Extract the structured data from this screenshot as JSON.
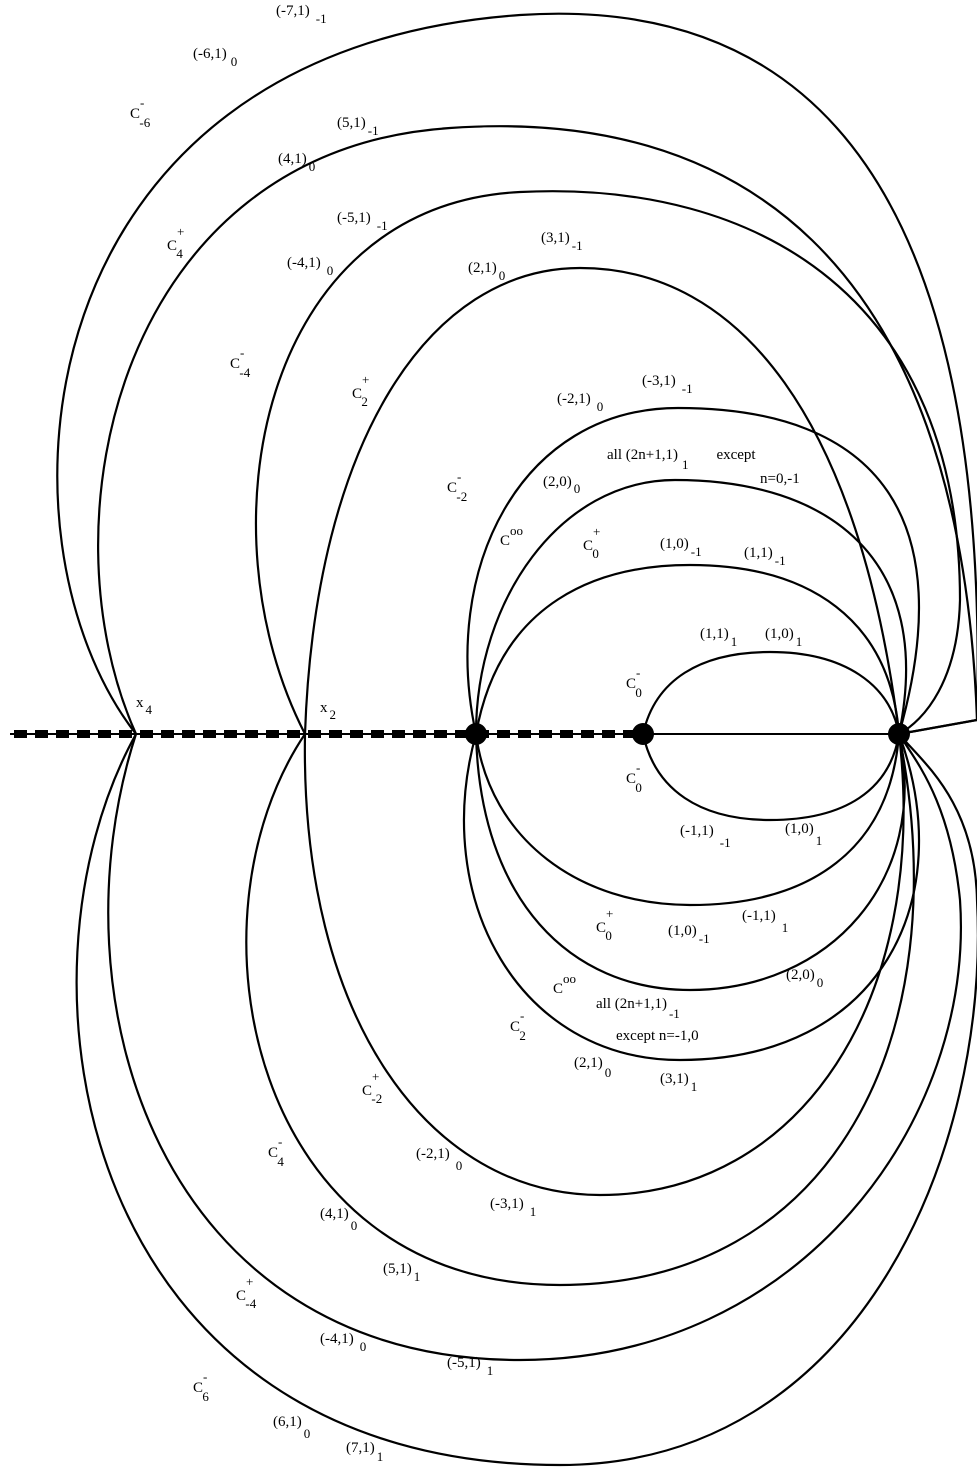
{
  "colors": {
    "ink": "#000000",
    "background": "#ffffff"
  },
  "labels": {
    "l_m7_1": {
      "main": "(-7,1)",
      "sub": "-1"
    },
    "l_m6_1": {
      "main": "(-6,1)",
      "sub": "0"
    },
    "c_m6_top": {
      "main": "C",
      "sup": "-",
      "sub": "-6"
    },
    "l_5_1": {
      "main": "(5,1)",
      "sub": "-1"
    },
    "l_4_1": {
      "main": "(4,1)",
      "sub": "0"
    },
    "c_4_top": {
      "main": "C",
      "sup": "+",
      "sub": "4"
    },
    "l_m5_1": {
      "main": "(-5,1)",
      "sub": "-1"
    },
    "l_m4_1": {
      "main": "(-4,1)",
      "sub": "0"
    },
    "l_3_1": {
      "main": "(3,1)",
      "sub": "-1"
    },
    "l_2_1": {
      "main": "(2,1)",
      "sub": "0"
    },
    "c_m4_top": {
      "main": "C",
      "sup": "-",
      "sub": "-4"
    },
    "c_2_top": {
      "main": "C",
      "sup": "+",
      "sub": "2"
    },
    "l_m3_1": {
      "main": "(-3,1)",
      "sub": "-1"
    },
    "l_m2_1": {
      "main": "(-2,1)",
      "sub": "0"
    },
    "all_top": {
      "main": "all  (2n+1,1)",
      "sub": "1",
      "tail": "except"
    },
    "n_top": {
      "main": "n=0,-1"
    },
    "c_m2_top": {
      "main": "C",
      "sup": "-",
      "sub": "-2"
    },
    "l_2_0": {
      "main": "(2,0)",
      "sub": "0"
    },
    "c_oo_top": {
      "main": "C",
      "sup": "oo"
    },
    "c_0p_top": {
      "main": "C",
      "sup": "+",
      "sub": "0"
    },
    "l_1_0_a": {
      "main": "(1,0)",
      "sub": "-1"
    },
    "l_1_1_a": {
      "main": "(1,1)",
      "sub": "-1"
    },
    "l_1_1_b": {
      "main": "(1,1)",
      "sub": "1"
    },
    "l_1_0_b": {
      "main": "(1,0)",
      "sub": "1"
    },
    "c_0m_top": {
      "main": "C",
      "sup": "-",
      "sub": "0"
    },
    "x4": {
      "main": "x",
      "sub": "4"
    },
    "x2": {
      "main": "x",
      "sub": "2"
    },
    "c_0m_bot": {
      "main": "C",
      "sup": "-",
      "sub": "0"
    },
    "l_m1_1_a": {
      "main": "(-1,1)",
      "sub": "-1"
    },
    "l_1_0_c": {
      "main": "(1,0)",
      "sub": "1"
    },
    "c_0p_bot": {
      "main": "C",
      "sup": "+",
      "sub": "0"
    },
    "l_1_0_d": {
      "main": "(1,0)",
      "sub": "-1"
    },
    "l_m1_1_b": {
      "main": "(-1,1)",
      "sub": "1"
    },
    "c_oo_bot": {
      "main": "C",
      "sup": "oo"
    },
    "l_2_0_b": {
      "main": "(2,0)",
      "sub": "0"
    },
    "all_bot": {
      "main": "all  (2n+1,1)",
      "sub": "-1"
    },
    "c_2m_bot": {
      "main": "C",
      "sup": "-",
      "sub": "2"
    },
    "except_bot": {
      "main": "except n=-1,0"
    },
    "l_2_1_b": {
      "main": "(2,1)",
      "sub": "0"
    },
    "l_3_1_b": {
      "main": "(3,1)",
      "sub": "1"
    },
    "c_m2p_bot": {
      "main": "C",
      "sup": "+",
      "sub": "-2"
    },
    "c_4m_bot": {
      "main": "C",
      "sup": "-",
      "sub": "4"
    },
    "l_m2_1_b": {
      "main": "(-2,1)",
      "sub": "0"
    },
    "l_m3_1_b": {
      "main": "(-3,1)",
      "sub": "1"
    },
    "l_4_1_b": {
      "main": "(4,1)",
      "sub": "0"
    },
    "l_5_1_b": {
      "main": "(5,1)",
      "sub": "1"
    },
    "c_m4p_bot": {
      "main": "C",
      "sup": "+",
      "sub": "-4"
    },
    "l_m4_1_b": {
      "main": "(-4,1)",
      "sub": "0"
    },
    "l_m5_1_b": {
      "main": "(-5,1)",
      "sub": "1"
    },
    "c_6m_bot": {
      "main": "C",
      "sup": "-",
      "sub": "6"
    },
    "l_6_1_b": {
      "main": "(6,1)",
      "sub": "0"
    },
    "l_7_1_b": {
      "main": "(7,1)",
      "sub": "1"
    }
  }
}
